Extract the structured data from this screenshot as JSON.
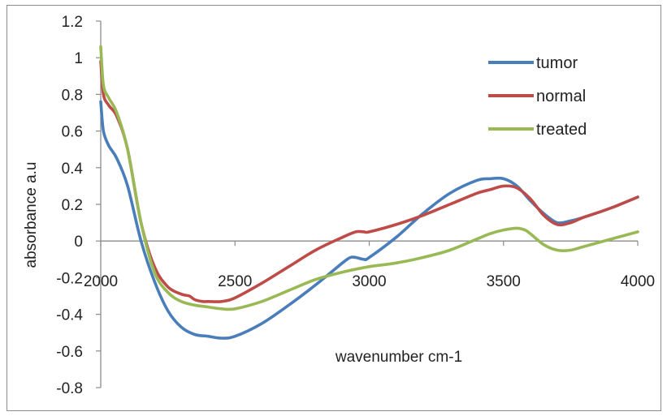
{
  "chart_data": {
    "type": "line",
    "title": "",
    "xlabel": "wavenumber cm-1",
    "ylabel": "absorbance a.u",
    "xlim": [
      2000,
      4000
    ],
    "ylim": [
      -0.8,
      1.2
    ],
    "xticks": [
      2000,
      2500,
      3000,
      3500,
      4000
    ],
    "yticks": [
      1.2,
      1,
      0.8,
      0.6,
      0.4,
      0.2,
      0,
      -0.2,
      -0.4,
      -0.6,
      -0.8
    ],
    "xtick_labels": [
      "2000",
      "2500",
      "3000",
      "3500",
      "4000"
    ],
    "ytick_labels": [
      "1.2",
      "1",
      "0.8",
      "0.6",
      "0.4",
      "0.2",
      "0",
      "-0.2",
      "-0.4",
      "-0.6",
      "-0.8"
    ],
    "grid": false,
    "legend_position": "top-right",
    "series": [
      {
        "name": "tumor",
        "color": "#4a7ebb",
        "x": [
          2000,
          2010,
          2030,
          2060,
          2100,
          2150,
          2200,
          2250,
          2300,
          2350,
          2400,
          2450,
          2500,
          2600,
          2700,
          2800,
          2900,
          2930,
          2950,
          2980,
          3000,
          3100,
          3200,
          3300,
          3400,
          3450,
          3500,
          3550,
          3600,
          3650,
          3700,
          3750,
          3800,
          3900,
          4000
        ],
        "y": [
          0.76,
          0.6,
          0.52,
          0.45,
          0.3,
          0.0,
          -0.22,
          -0.38,
          -0.47,
          -0.51,
          -0.52,
          -0.53,
          -0.52,
          -0.45,
          -0.35,
          -0.24,
          -0.12,
          -0.09,
          -0.09,
          -0.1,
          -0.09,
          0.02,
          0.15,
          0.26,
          0.33,
          0.34,
          0.34,
          0.3,
          0.22,
          0.15,
          0.1,
          0.11,
          0.13,
          0.18,
          0.24
        ]
      },
      {
        "name": "normal",
        "color": "#be4b48",
        "x": [
          2000,
          2010,
          2030,
          2060,
          2100,
          2150,
          2200,
          2250,
          2300,
          2330,
          2350,
          2380,
          2400,
          2450,
          2500,
          2600,
          2700,
          2800,
          2900,
          2950,
          2980,
          3000,
          3100,
          3200,
          3300,
          3400,
          3450,
          3500,
          3550,
          3600,
          3650,
          3700,
          3750,
          3800,
          3900,
          4000
        ],
        "y": [
          0.98,
          0.8,
          0.74,
          0.68,
          0.5,
          0.1,
          -0.14,
          -0.25,
          -0.29,
          -0.3,
          -0.32,
          -0.33,
          -0.33,
          -0.33,
          -0.31,
          -0.23,
          -0.14,
          -0.05,
          0.02,
          0.05,
          0.05,
          0.05,
          0.09,
          0.14,
          0.2,
          0.26,
          0.28,
          0.3,
          0.29,
          0.23,
          0.14,
          0.09,
          0.1,
          0.13,
          0.18,
          0.24
        ]
      },
      {
        "name": "treated",
        "color": "#98b954",
        "x": [
          2000,
          2010,
          2030,
          2060,
          2100,
          2150,
          2200,
          2250,
          2300,
          2350,
          2400,
          2450,
          2500,
          2600,
          2700,
          2800,
          2900,
          3000,
          3100,
          3200,
          3300,
          3400,
          3450,
          3500,
          3550,
          3580,
          3600,
          3650,
          3700,
          3750,
          3800,
          3900,
          4000
        ],
        "y": [
          1.06,
          0.85,
          0.78,
          0.7,
          0.5,
          0.1,
          -0.17,
          -0.28,
          -0.33,
          -0.35,
          -0.36,
          -0.37,
          -0.37,
          -0.33,
          -0.27,
          -0.21,
          -0.17,
          -0.14,
          -0.12,
          -0.09,
          -0.05,
          0.01,
          0.04,
          0.06,
          0.07,
          0.06,
          0.04,
          -0.02,
          -0.05,
          -0.05,
          -0.03,
          0.01,
          0.05
        ]
      }
    ]
  }
}
